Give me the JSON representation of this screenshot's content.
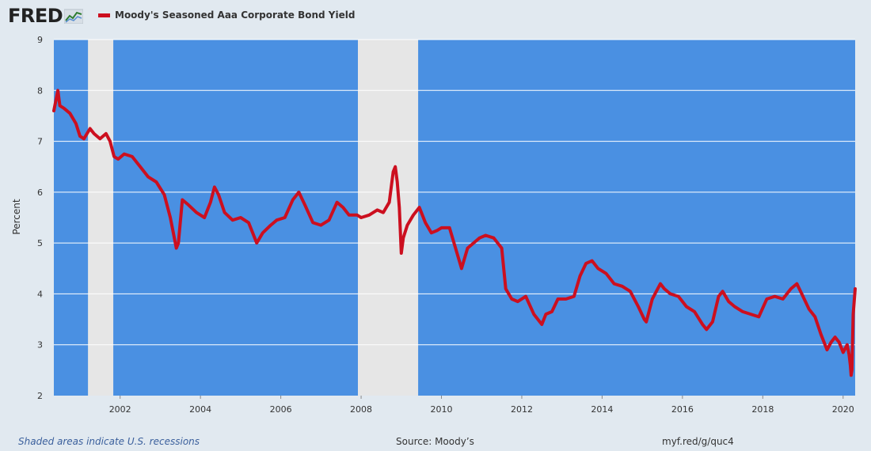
{
  "header": {
    "logo_text": "FRED",
    "logo_icon": "line-graph-icon"
  },
  "chart_data": {
    "type": "line",
    "title": "",
    "xlabel": "",
    "ylabel": "Percent",
    "xlim": [
      2000.35,
      2020.3
    ],
    "ylim": [
      2,
      9
    ],
    "yticks": [
      2,
      3,
      4,
      5,
      6,
      7,
      8,
      9
    ],
    "xticks": [
      2002,
      2004,
      2006,
      2008,
      2010,
      2012,
      2014,
      2016,
      2018,
      2020
    ],
    "xtick_labels": [
      "2002",
      "2004",
      "2006",
      "2008",
      "2010",
      "2012",
      "2014",
      "2016",
      "2018",
      "2020"
    ],
    "grid": "horizontal",
    "legend_position": "top-left",
    "background_color": "#4a90e2",
    "line_color": "#cc0f1f",
    "recession_color": "#e6e6e6",
    "recessions": [
      [
        2001.2,
        2001.83
      ],
      [
        2007.92,
        2009.42
      ]
    ],
    "series": [
      {
        "name": "Moody's Seasoned Aaa Corporate Bond Yield",
        "x": [
          2000.35,
          2000.45,
          2000.5,
          2000.6,
          2000.75,
          2000.9,
          2001.0,
          2001.1,
          2001.25,
          2001.35,
          2001.5,
          2001.65,
          2001.75,
          2001.85,
          2001.95,
          2002.1,
          2002.3,
          2002.5,
          2002.7,
          2002.9,
          2003.1,
          2003.25,
          2003.4,
          2003.45,
          2003.55,
          2003.7,
          2003.9,
          2004.1,
          2004.25,
          2004.35,
          2004.45,
          2004.6,
          2004.8,
          2005.0,
          2005.2,
          2005.4,
          2005.55,
          2005.75,
          2005.9,
          2006.1,
          2006.3,
          2006.45,
          2006.6,
          2006.8,
          2007.0,
          2007.2,
          2007.4,
          2007.55,
          2007.7,
          2007.9,
          2008.0,
          2008.2,
          2008.4,
          2008.55,
          2008.7,
          2008.8,
          2008.85,
          2008.9,
          2008.95,
          2009.0,
          2009.05,
          2009.15,
          2009.3,
          2009.45,
          2009.6,
          2009.75,
          2009.9,
          2010.0,
          2010.2,
          2010.35,
          2010.5,
          2010.65,
          2010.8,
          2010.95,
          2011.1,
          2011.3,
          2011.5,
          2011.6,
          2011.75,
          2011.9,
          2012.1,
          2012.3,
          2012.5,
          2012.6,
          2012.75,
          2012.9,
          2013.1,
          2013.3,
          2013.45,
          2013.6,
          2013.75,
          2013.9,
          2014.1,
          2014.3,
          2014.5,
          2014.7,
          2014.9,
          2015.05,
          2015.1,
          2015.25,
          2015.45,
          2015.55,
          2015.7,
          2015.9,
          2016.1,
          2016.3,
          2016.5,
          2016.6,
          2016.75,
          2016.9,
          2017.0,
          2017.15,
          2017.3,
          2017.5,
          2017.7,
          2017.9,
          2018.1,
          2018.3,
          2018.5,
          2018.7,
          2018.85,
          2019.0,
          2019.15,
          2019.3,
          2019.45,
          2019.6,
          2019.7,
          2019.8,
          2019.9,
          2020.0,
          2020.1,
          2020.15,
          2020.18,
          2020.2,
          2020.22,
          2020.25,
          2020.3
        ],
        "values": [
          7.6,
          8.0,
          7.7,
          7.65,
          7.55,
          7.35,
          7.1,
          7.05,
          7.25,
          7.15,
          7.05,
          7.15,
          7.0,
          6.7,
          6.65,
          6.75,
          6.7,
          6.5,
          6.3,
          6.2,
          5.95,
          5.5,
          4.9,
          5.0,
          5.85,
          5.75,
          5.6,
          5.5,
          5.8,
          6.1,
          5.95,
          5.6,
          5.45,
          5.5,
          5.4,
          5.0,
          5.2,
          5.35,
          5.45,
          5.5,
          5.85,
          6.0,
          5.75,
          5.4,
          5.35,
          5.45,
          5.8,
          5.7,
          5.55,
          5.55,
          5.5,
          5.55,
          5.65,
          5.6,
          5.8,
          6.4,
          6.5,
          6.2,
          5.7,
          4.8,
          5.1,
          5.35,
          5.55,
          5.7,
          5.4,
          5.2,
          5.25,
          5.3,
          5.3,
          4.9,
          4.5,
          4.9,
          5.0,
          5.1,
          5.15,
          5.1,
          4.9,
          4.1,
          3.9,
          3.85,
          3.95,
          3.6,
          3.4,
          3.6,
          3.65,
          3.9,
          3.9,
          3.95,
          4.35,
          4.6,
          4.65,
          4.5,
          4.4,
          4.2,
          4.15,
          4.05,
          3.75,
          3.5,
          3.45,
          3.9,
          4.2,
          4.1,
          4.0,
          3.95,
          3.75,
          3.65,
          3.4,
          3.3,
          3.45,
          3.95,
          4.05,
          3.85,
          3.75,
          3.65,
          3.6,
          3.55,
          3.9,
          3.95,
          3.9,
          4.1,
          4.2,
          3.95,
          3.7,
          3.55,
          3.2,
          2.9,
          3.05,
          3.15,
          3.05,
          2.85,
          3.0,
          2.8,
          2.6,
          2.4,
          2.5,
          3.6,
          4.1
        ]
      }
    ]
  },
  "footer": {
    "note": "Shaded areas indicate U.S. recessions",
    "source": "Source: Moody’s",
    "link": "myf.red/g/quc4"
  }
}
